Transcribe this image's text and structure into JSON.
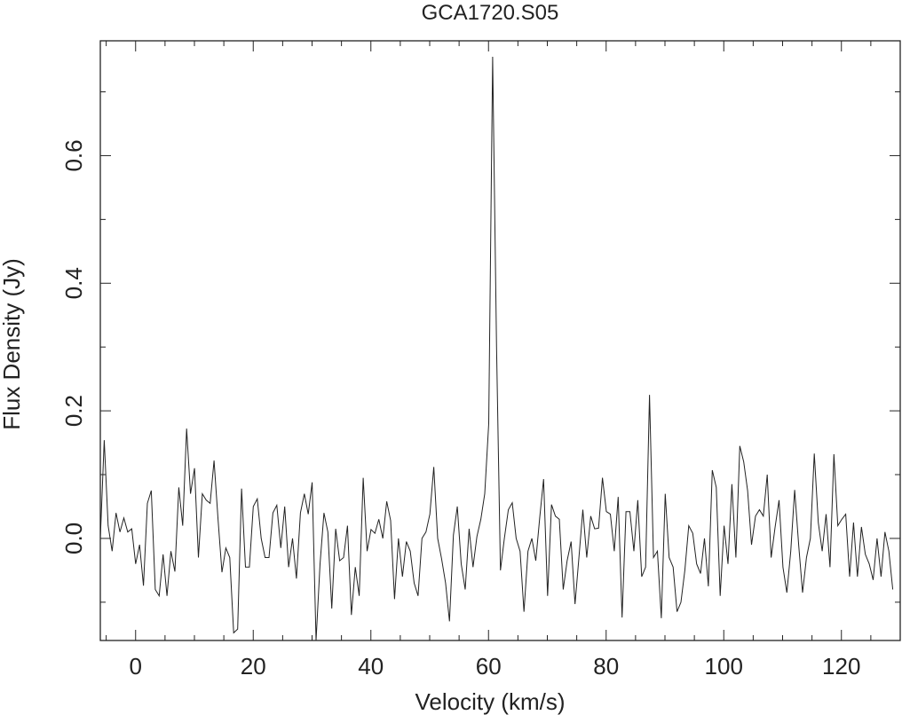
{
  "chart_data": {
    "type": "line",
    "title": "GCA1720.S05",
    "xlabel": "Velocity (km/s)",
    "ylabel": "Flux Density (Jy)",
    "xlim": [
      -6,
      130
    ],
    "ylim": [
      -0.16,
      0.78
    ],
    "xticks": [
      0,
      20,
      40,
      60,
      80,
      100,
      120
    ],
    "xtick_labels": [
      "0",
      "20",
      "40",
      "60",
      "80",
      "100",
      "120"
    ],
    "yticks": [
      0.0,
      0.2,
      0.4,
      0.6
    ],
    "ytick_labels": [
      "0.0",
      "0.2",
      "0.4",
      "0.6"
    ],
    "grid": false,
    "series": [
      {
        "x_start": -6.0,
        "x_step": 0.667,
        "color": "#222222",
        "values": [
          0.0,
          0.154,
          0.02,
          -0.02,
          0.04,
          0.01,
          0.032,
          0.01,
          0.015,
          -0.04,
          -0.01,
          -0.074,
          0.055,
          0.075,
          -0.08,
          -0.09,
          -0.025,
          -0.09,
          -0.02,
          -0.052,
          0.08,
          0.02,
          0.172,
          0.07,
          0.11,
          -0.03,
          0.07,
          0.06,
          0.055,
          0.122,
          0.03,
          -0.053,
          -0.015,
          -0.03,
          -0.148,
          -0.142,
          0.078,
          -0.045,
          -0.045,
          0.05,
          0.062,
          0.0,
          -0.03,
          -0.03,
          0.04,
          0.052,
          -0.015,
          0.05,
          -0.045,
          0.0,
          -0.063,
          0.04,
          0.07,
          0.038,
          0.088,
          -0.16,
          -0.04,
          0.04,
          0.01,
          -0.11,
          0.015,
          -0.035,
          -0.03,
          0.02,
          -0.12,
          -0.045,
          -0.09,
          0.095,
          -0.02,
          0.014,
          0.008,
          0.03,
          0.0,
          0.058,
          0.028,
          -0.095,
          0.0,
          -0.06,
          -0.005,
          -0.02,
          -0.07,
          -0.09,
          0.0,
          0.01,
          0.038,
          0.112,
          0.0,
          -0.032,
          -0.07,
          -0.13,
          0.005,
          0.05,
          -0.04,
          -0.08,
          0.015,
          -0.045,
          0.003,
          0.03,
          0.07,
          0.18,
          0.755,
          0.3,
          -0.05,
          0.0,
          0.045,
          0.056,
          0.0,
          -0.02,
          -0.115,
          -0.02,
          0.0,
          -0.035,
          0.032,
          0.093,
          -0.09,
          0.053,
          0.035,
          0.03,
          -0.08,
          -0.035,
          -0.005,
          -0.103,
          -0.03,
          0.045,
          -0.03,
          0.035,
          0.015,
          0.016,
          0.095,
          0.042,
          0.038,
          -0.02,
          0.065,
          -0.124,
          0.042,
          0.042,
          -0.02,
          0.06,
          -0.06,
          -0.045,
          0.225,
          -0.03,
          -0.02,
          -0.125,
          0.07,
          -0.03,
          -0.045,
          -0.115,
          -0.1,
          -0.05,
          0.02,
          0.008,
          -0.04,
          -0.055,
          0.0,
          -0.075,
          0.107,
          0.08,
          -0.09,
          0.02,
          -0.04,
          0.085,
          -0.03,
          0.145,
          0.12,
          0.075,
          -0.01,
          0.035,
          0.045,
          0.035,
          0.1,
          -0.03,
          0.017,
          0.06,
          -0.045,
          -0.085,
          -0.02,
          0.076,
          -0.01,
          -0.085,
          -0.03,
          0.0,
          0.133,
          0.025,
          -0.02,
          0.038,
          -0.045,
          0.132,
          0.02,
          0.03,
          0.038,
          -0.06,
          0.025,
          -0.06,
          0.018,
          -0.025,
          -0.04,
          -0.065,
          0.0,
          -0.06,
          0.01,
          -0.02,
          -0.08
        ]
      }
    ]
  }
}
